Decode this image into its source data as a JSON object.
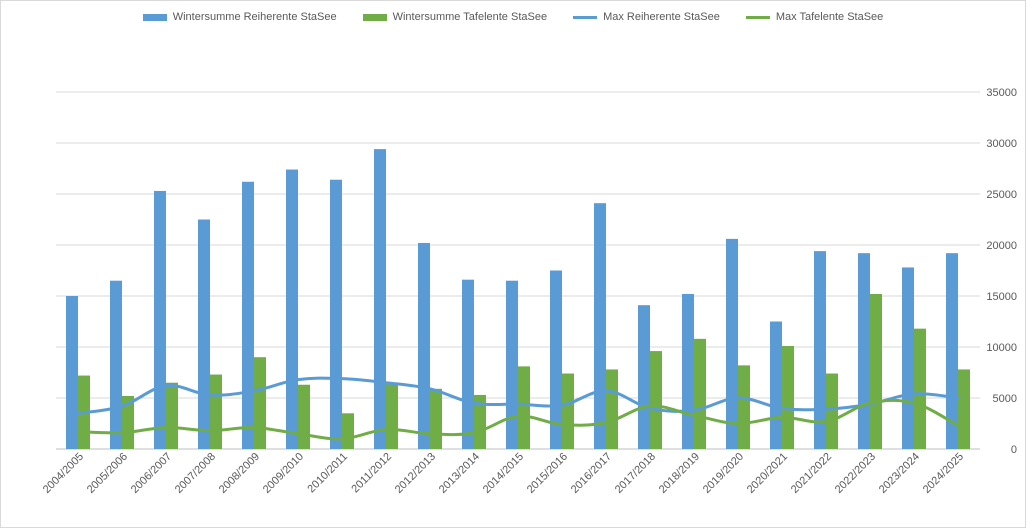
{
  "chart_data": {
    "type": "bar",
    "categories": [
      "2004/2005",
      "2005/2006",
      "2006/2007",
      "2007/2008",
      "2008/2009",
      "2009/2010",
      "2010/2011",
      "2011/2012",
      "2012/2013",
      "2013/2014",
      "2014/2015",
      "2015/2016",
      "2016/2017",
      "2017/2018",
      "2018/2019",
      "2019/2020",
      "2020/2021",
      "2021/2022",
      "2022/2023",
      "2023/2024",
      "2024/2025"
    ],
    "series": [
      {
        "name": "Wintersumme Reiherente StaSee",
        "kind": "bar",
        "color": "#5b9bd5",
        "values": [
          15000,
          16500,
          25300,
          22500,
          26200,
          27400,
          26400,
          29400,
          20200,
          16600,
          16500,
          17500,
          24100,
          14100,
          15200,
          20600,
          12500,
          19400,
          19200,
          17800,
          19200
        ]
      },
      {
        "name": "Wintersumme Tafelente StaSee",
        "kind": "bar",
        "color": "#70ad47",
        "values": [
          7200,
          5200,
          6500,
          7300,
          9000,
          6300,
          3500,
          6500,
          5900,
          5300,
          8100,
          7400,
          7800,
          9600,
          10800,
          8200,
          10100,
          7400,
          15200,
          11800,
          7800
        ]
      },
      {
        "name": "Max Reiherente StaSee",
        "kind": "line",
        "color": "#5b9bd5",
        "values": [
          3500,
          4200,
          6200,
          5300,
          5700,
          6800,
          6900,
          6500,
          5900,
          4500,
          4400,
          4300,
          5700,
          4000,
          3800,
          5000,
          4000,
          3900,
          4400,
          5400,
          5000
        ]
      },
      {
        "name": "Max Tafelente StaSee",
        "kind": "line",
        "color": "#70ad47",
        "values": [
          1700,
          1600,
          2100,
          1800,
          2100,
          1500,
          1000,
          1900,
          1500,
          1600,
          3200,
          2400,
          2600,
          4200,
          3300,
          2500,
          3100,
          2700,
          4500,
          4500,
          2300
        ]
      }
    ],
    "ylim": [
      0,
      35000
    ],
    "yticks": [
      0,
      5000,
      10000,
      15000,
      20000,
      25000,
      30000,
      35000
    ],
    "grid": true,
    "legend_position": "top"
  }
}
